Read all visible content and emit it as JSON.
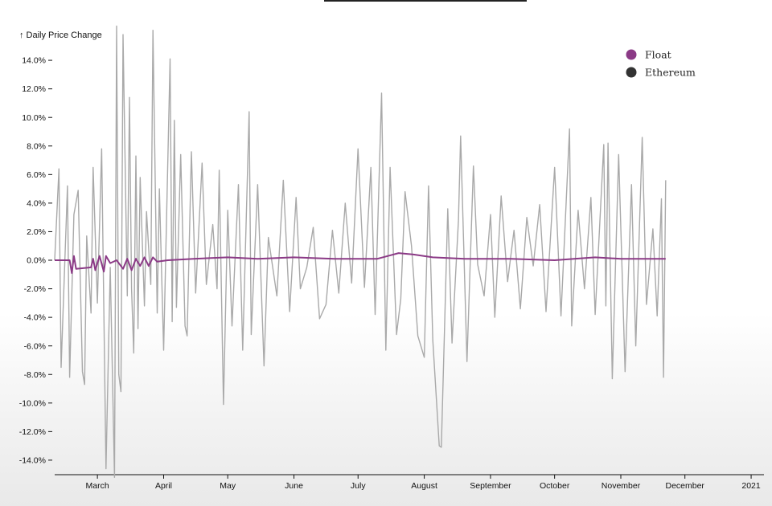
{
  "chart_data": {
    "type": "line",
    "title": "",
    "ylabel": "↑ Daily Price Change",
    "xlabel": "",
    "ylim": [
      -15,
      15
    ],
    "y_ticks": [
      14,
      12,
      10,
      8,
      6,
      4,
      2,
      0,
      -2,
      -4,
      -6,
      -8,
      -10,
      -12,
      -14
    ],
    "y_tick_labels": [
      "14.0%",
      "12.0%",
      "10.0%",
      "8.0%",
      "6.0%",
      "4.0%",
      "2.0%",
      "0.0%",
      "-2.0%",
      "-4.0%",
      "-6.0%",
      "-8.0%",
      "-10.0%",
      "-12.0%",
      "-14.0%"
    ],
    "x_ticks": [
      "March",
      "April",
      "May",
      "June",
      "July",
      "August",
      "September",
      "October",
      "November",
      "December",
      "2021"
    ],
    "x_domain": [
      "2020-02-10",
      "2021-01-07"
    ],
    "grid": false,
    "legend_position": "top-right",
    "series": [
      {
        "name": "Ethereum",
        "legend_color": "#333333",
        "line_color": "#a9a9a9",
        "points": [
          [
            "2020-02-10",
            0.0
          ],
          [
            "2020-02-12",
            6.4
          ],
          [
            "2020-02-13",
            -7.5
          ],
          [
            "2020-02-16",
            5.2
          ],
          [
            "2020-02-17",
            -8.2
          ],
          [
            "2020-02-19",
            3.2
          ],
          [
            "2020-02-21",
            4.9
          ],
          [
            "2020-02-23",
            -7.8
          ],
          [
            "2020-02-24",
            -8.7
          ],
          [
            "2020-02-25",
            1.7
          ],
          [
            "2020-02-27",
            -3.7
          ],
          [
            "2020-02-28",
            6.5
          ],
          [
            "2020-03-01",
            -3.0
          ],
          [
            "2020-03-03",
            7.8
          ],
          [
            "2020-03-05",
            -14.6
          ],
          [
            "2020-03-07",
            -0.5
          ],
          [
            "2020-03-09",
            -15.2
          ],
          [
            "2020-03-10",
            16.4
          ],
          [
            "2020-03-11",
            -8.0
          ],
          [
            "2020-03-12",
            -9.2
          ],
          [
            "2020-03-13",
            15.8
          ],
          [
            "2020-03-15",
            -2.5
          ],
          [
            "2020-03-16",
            11.4
          ],
          [
            "2020-03-17",
            -2.0
          ],
          [
            "2020-03-18",
            -6.5
          ],
          [
            "2020-03-19",
            7.3
          ],
          [
            "2020-03-20",
            -4.8
          ],
          [
            "2020-03-21",
            5.8
          ],
          [
            "2020-03-23",
            -3.2
          ],
          [
            "2020-03-24",
            3.4
          ],
          [
            "2020-03-26",
            -1.7
          ],
          [
            "2020-03-27",
            16.1
          ],
          [
            "2020-03-29",
            -3.7
          ],
          [
            "2020-03-30",
            5.0
          ],
          [
            "2020-04-01",
            -6.3
          ],
          [
            "2020-04-04",
            14.1
          ],
          [
            "2020-04-05",
            -4.3
          ],
          [
            "2020-04-06",
            9.8
          ],
          [
            "2020-04-07",
            -3.3
          ],
          [
            "2020-04-09",
            7.4
          ],
          [
            "2020-04-11",
            -4.6
          ],
          [
            "2020-04-12",
            -5.3
          ],
          [
            "2020-04-14",
            7.6
          ],
          [
            "2020-04-16",
            -2.3
          ],
          [
            "2020-04-19",
            6.8
          ],
          [
            "2020-04-21",
            -1.7
          ],
          [
            "2020-04-24",
            2.5
          ],
          [
            "2020-04-26",
            -2.0
          ],
          [
            "2020-04-27",
            6.3
          ],
          [
            "2020-04-29",
            -10.1
          ],
          [
            "2020-05-01",
            3.5
          ],
          [
            "2020-05-03",
            -4.6
          ],
          [
            "2020-05-06",
            5.3
          ],
          [
            "2020-05-08",
            -6.3
          ],
          [
            "2020-05-11",
            10.4
          ],
          [
            "2020-05-12",
            -5.2
          ],
          [
            "2020-05-15",
            5.3
          ],
          [
            "2020-05-18",
            -7.4
          ],
          [
            "2020-05-20",
            1.6
          ],
          [
            "2020-05-24",
            -2.5
          ],
          [
            "2020-05-27",
            5.6
          ],
          [
            "2020-05-30",
            -3.6
          ],
          [
            "2020-06-02",
            4.4
          ],
          [
            "2020-06-04",
            -2.0
          ],
          [
            "2020-06-07",
            -0.5
          ],
          [
            "2020-06-10",
            2.3
          ],
          [
            "2020-06-13",
            -4.1
          ],
          [
            "2020-06-16",
            -3.1
          ],
          [
            "2020-06-19",
            2.1
          ],
          [
            "2020-06-22",
            -2.3
          ],
          [
            "2020-06-25",
            4.0
          ],
          [
            "2020-06-28",
            -1.6
          ],
          [
            "2020-07-01",
            7.8
          ],
          [
            "2020-07-04",
            -1.9
          ],
          [
            "2020-07-07",
            6.5
          ],
          [
            "2020-07-09",
            -3.8
          ],
          [
            "2020-07-12",
            11.7
          ],
          [
            "2020-07-14",
            -6.3
          ],
          [
            "2020-07-16",
            6.5
          ],
          [
            "2020-07-19",
            -5.2
          ],
          [
            "2020-07-21",
            -2.7
          ],
          [
            "2020-07-23",
            4.8
          ],
          [
            "2020-07-26",
            1.0
          ],
          [
            "2020-07-29",
            -5.3
          ],
          [
            "2020-08-01",
            -6.8
          ],
          [
            "2020-08-03",
            5.2
          ],
          [
            "2020-08-05",
            -5.6
          ],
          [
            "2020-08-08",
            -13.0
          ],
          [
            "2020-08-09",
            -13.1
          ],
          [
            "2020-08-12",
            3.6
          ],
          [
            "2020-08-14",
            -5.8
          ],
          [
            "2020-08-17",
            2.8
          ],
          [
            "2020-08-18",
            8.7
          ],
          [
            "2020-08-21",
            -7.1
          ],
          [
            "2020-08-24",
            6.6
          ],
          [
            "2020-08-26",
            -0.3
          ],
          [
            "2020-08-29",
            -2.5
          ],
          [
            "2020-09-01",
            3.2
          ],
          [
            "2020-09-03",
            -4.0
          ],
          [
            "2020-09-06",
            4.5
          ],
          [
            "2020-09-09",
            -1.5
          ],
          [
            "2020-09-12",
            2.1
          ],
          [
            "2020-09-15",
            -3.4
          ],
          [
            "2020-09-18",
            3.0
          ],
          [
            "2020-09-21",
            -0.4
          ],
          [
            "2020-09-24",
            3.9
          ],
          [
            "2020-09-27",
            -3.6
          ],
          [
            "2020-10-01",
            6.5
          ],
          [
            "2020-10-04",
            -3.9
          ],
          [
            "2020-10-08",
            9.2
          ],
          [
            "2020-10-09",
            -4.6
          ],
          [
            "2020-10-12",
            3.5
          ],
          [
            "2020-10-15",
            -2.0
          ],
          [
            "2020-10-18",
            4.4
          ],
          [
            "2020-10-20",
            -3.8
          ],
          [
            "2020-10-24",
            8.1
          ],
          [
            "2020-10-25",
            -3.2
          ],
          [
            "2020-10-26",
            8.2
          ],
          [
            "2020-10-28",
            -8.3
          ],
          [
            "2020-10-31",
            7.4
          ],
          [
            "2020-11-03",
            -7.8
          ],
          [
            "2020-11-06",
            5.3
          ],
          [
            "2020-11-08",
            -6.0
          ],
          [
            "2020-11-11",
            8.6
          ],
          [
            "2020-11-13",
            -3.1
          ],
          [
            "2020-11-16",
            2.2
          ],
          [
            "2020-11-18",
            -3.9
          ],
          [
            "2020-11-20",
            4.3
          ],
          [
            "2020-11-21",
            -8.2
          ],
          [
            "2020-11-22",
            5.6
          ]
        ]
      },
      {
        "name": "Float",
        "legend_color": "#8b3a86",
        "line_color": "#8b3a86",
        "points": [
          [
            "2020-02-10",
            0.0
          ],
          [
            "2020-02-17",
            0.0
          ],
          [
            "2020-02-18",
            -0.9
          ],
          [
            "2020-02-19",
            0.3
          ],
          [
            "2020-02-20",
            -0.6
          ],
          [
            "2020-02-27",
            -0.5
          ],
          [
            "2020-02-28",
            0.1
          ],
          [
            "2020-02-29",
            -0.7
          ],
          [
            "2020-03-02",
            0.3
          ],
          [
            "2020-03-04",
            -0.8
          ],
          [
            "2020-03-05",
            0.3
          ],
          [
            "2020-03-07",
            -0.2
          ],
          [
            "2020-03-10",
            0.0
          ],
          [
            "2020-03-13",
            -0.6
          ],
          [
            "2020-03-15",
            0.1
          ],
          [
            "2020-03-17",
            -0.7
          ],
          [
            "2020-03-19",
            0.1
          ],
          [
            "2020-03-21",
            -0.4
          ],
          [
            "2020-03-23",
            0.2
          ],
          [
            "2020-03-25",
            -0.4
          ],
          [
            "2020-03-27",
            0.2
          ],
          [
            "2020-03-29",
            -0.1
          ],
          [
            "2020-04-03",
            0.0
          ],
          [
            "2020-04-15",
            0.1
          ],
          [
            "2020-05-01",
            0.2
          ],
          [
            "2020-05-15",
            0.1
          ],
          [
            "2020-06-01",
            0.2
          ],
          [
            "2020-06-20",
            0.1
          ],
          [
            "2020-07-10",
            0.1
          ],
          [
            "2020-07-15",
            0.3
          ],
          [
            "2020-07-20",
            0.5
          ],
          [
            "2020-07-27",
            0.4
          ],
          [
            "2020-08-05",
            0.2
          ],
          [
            "2020-08-20",
            0.1
          ],
          [
            "2020-09-10",
            0.1
          ],
          [
            "2020-10-01",
            0.0
          ],
          [
            "2020-10-20",
            0.2
          ],
          [
            "2020-11-01",
            0.1
          ],
          [
            "2020-11-22",
            0.1
          ]
        ]
      }
    ]
  }
}
